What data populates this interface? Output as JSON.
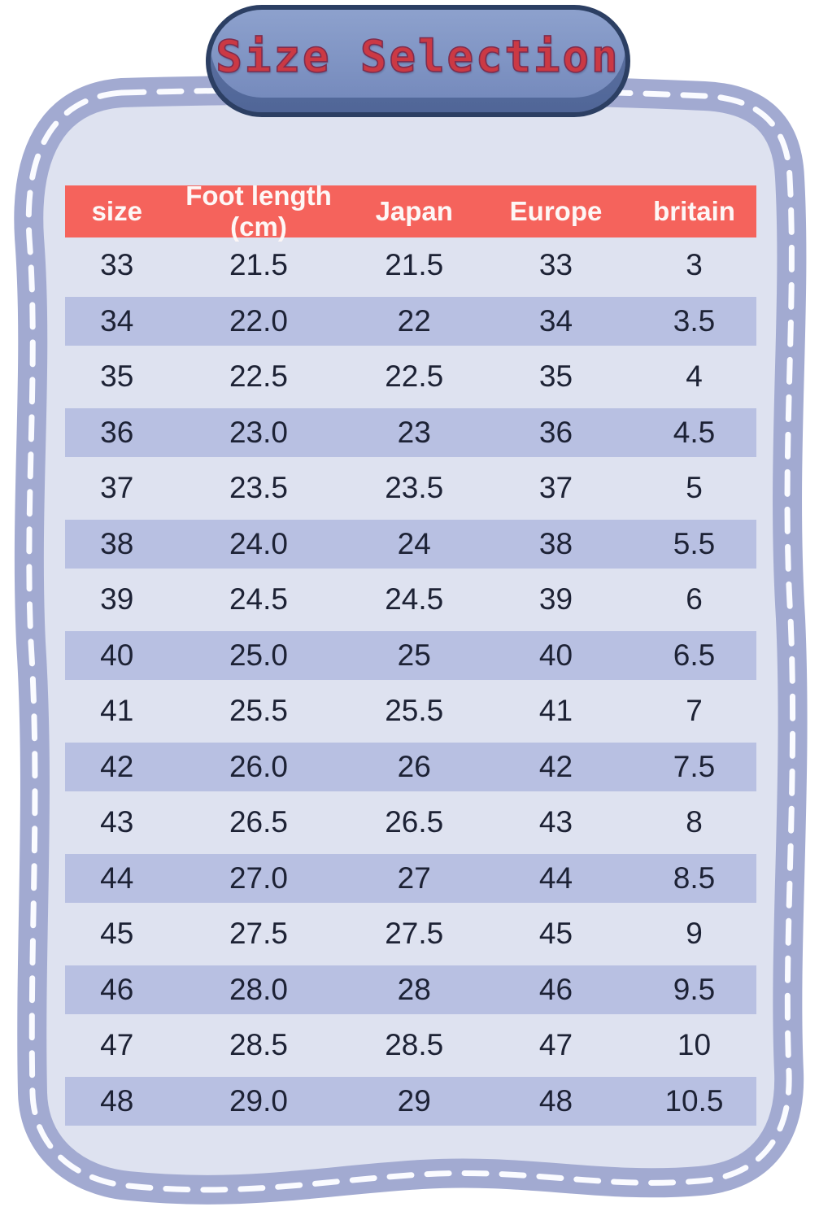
{
  "title_badge": {
    "label": "Size Selection"
  },
  "chart_data": {
    "type": "table",
    "title": "Size Selection",
    "columns": [
      "size",
      "Foot length (cm)",
      "Japan",
      "Europe",
      "britain"
    ],
    "rows": [
      [
        "33",
        "21.5",
        "21.5",
        "33",
        "3"
      ],
      [
        "34",
        "22.0",
        "22",
        "34",
        "3.5"
      ],
      [
        "35",
        "22.5",
        "22.5",
        "35",
        "4"
      ],
      [
        "36",
        "23.0",
        "23",
        "36",
        "4.5"
      ],
      [
        "37",
        "23.5",
        "23.5",
        "37",
        "5"
      ],
      [
        "38",
        "24.0",
        "24",
        "38",
        "5.5"
      ],
      [
        "39",
        "24.5",
        "24.5",
        "39",
        "6"
      ],
      [
        "40",
        "25.0",
        "25",
        "40",
        "6.5"
      ],
      [
        "41",
        "25.5",
        "25.5",
        "41",
        "7"
      ],
      [
        "42",
        "26.0",
        "26",
        "42",
        "7.5"
      ],
      [
        "43",
        "26.5",
        "26.5",
        "43",
        "8"
      ],
      [
        "44",
        "27.0",
        "27",
        "44",
        "8.5"
      ],
      [
        "45",
        "27.5",
        "27.5",
        "45",
        "9"
      ],
      [
        "46",
        "28.0",
        "28",
        "46",
        "9.5"
      ],
      [
        "47",
        "28.5",
        "28.5",
        "47",
        "10"
      ],
      [
        "48",
        "29.0",
        "29",
        "48",
        "10.5"
      ]
    ]
  },
  "style": {
    "page_bg": "#ffffff",
    "band": "#a2aad1",
    "dash": "#fafbff",
    "card_bg": "#dee2f0",
    "stripe_bg": "#b8c0e2",
    "header_bg": "#f5635c",
    "header_text": "#fdf7f6",
    "text_color": "#1d2235",
    "badge_fill": "#8da1cd",
    "badge_fill_dark": "#7287ba",
    "badge_edge": "#2c3f63",
    "badge_lip": "rgba(41,61,110,0.45)",
    "title_color": "#cb3944",
    "title_outline": "#7d2d4f"
  }
}
